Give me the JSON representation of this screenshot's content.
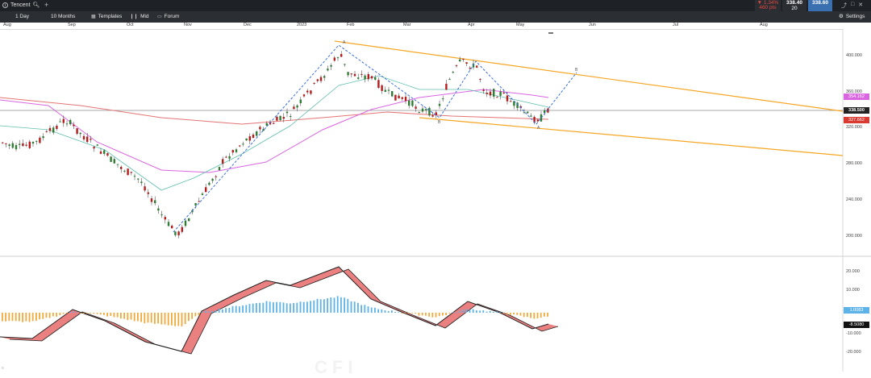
{
  "title_bar": {
    "symbol": "Tencent",
    "change_pct": "▼ 1.34%",
    "change_pts": "460 pts",
    "bid": "338.40",
    "spread": "20",
    "ask": "338.60"
  },
  "toolbar": {
    "timeframe": "1 Day",
    "range": "10 Months",
    "templates": "Templates",
    "price_type": "Mid",
    "forum": "Forum",
    "settings": "Settings"
  },
  "months": [
    "Aug",
    "Sep",
    "Oct",
    "Nov",
    "Dec",
    "2023",
    "Feb",
    "Mar",
    "Apr",
    "May",
    "Jun",
    "Jul",
    "Aug"
  ],
  "price_axis": [
    "400.000",
    "360.000",
    "320.000",
    "280.000",
    "240.000",
    "200.000"
  ],
  "price_boxes": {
    "ma_value": "354.162",
    "last_price": "338.500",
    "ma2_value": "327.662"
  },
  "macd_axis": [
    "20.000",
    "10.000",
    "-10.000",
    "-20.000"
  ],
  "macd_boxes": {
    "histogram": "1.0083",
    "signal": "-8.5080"
  },
  "pattern_labels": {
    "top_a": "A",
    "b": "B",
    "top_c": "A",
    "bottom_a": "A",
    "end_b": "B"
  },
  "watermark": "CFI",
  "colors": {
    "bull": "#2e7d32",
    "bear": "#b71c1c",
    "channel": "#f5a623",
    "ma_red": "#e57373",
    "ma_magenta": "#d966e0",
    "ma_teal": "#5fbfae",
    "pattern": "#3a6fe0",
    "macd_pos": "#5db3e8",
    "macd_neg": "#f2a93b"
  }
}
